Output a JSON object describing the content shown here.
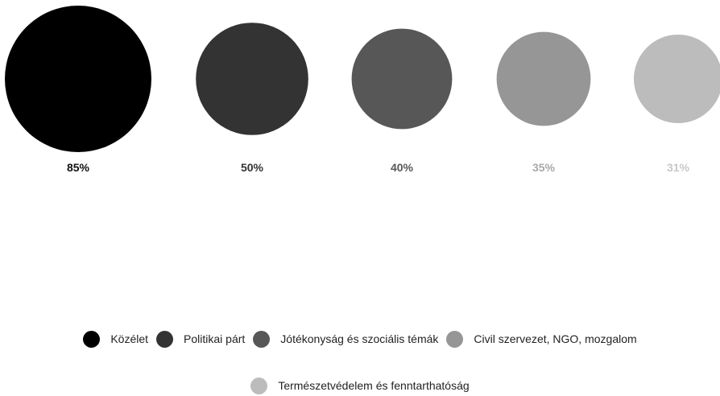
{
  "chart_data": {
    "type": "bubble",
    "title": "",
    "xlabel": "",
    "ylabel": "",
    "legend_position": "bottom",
    "grid": false,
    "series": [
      {
        "name": "Közélet",
        "value": 85,
        "label": "85%",
        "color": "#000000",
        "label_color": "#111111"
      },
      {
        "name": "Politikai párt",
        "value": 50,
        "label": "50%",
        "color": "#333333",
        "label_color": "#333333"
      },
      {
        "name": "Jótékonyság és szociális témák",
        "value": 40,
        "label": "40%",
        "color": "#575757",
        "label_color": "#575757"
      },
      {
        "name": "Civil szervezet, NGO, mozgalom",
        "value": 35,
        "label": "35%",
        "color": "#969696",
        "label_color": "#a8a8a8"
      },
      {
        "name": "Természetvédelem és fenntarthatóság",
        "value": 31,
        "label": "31%",
        "color": "#bcbcbc",
        "label_color": "#c8c8c8"
      }
    ]
  }
}
